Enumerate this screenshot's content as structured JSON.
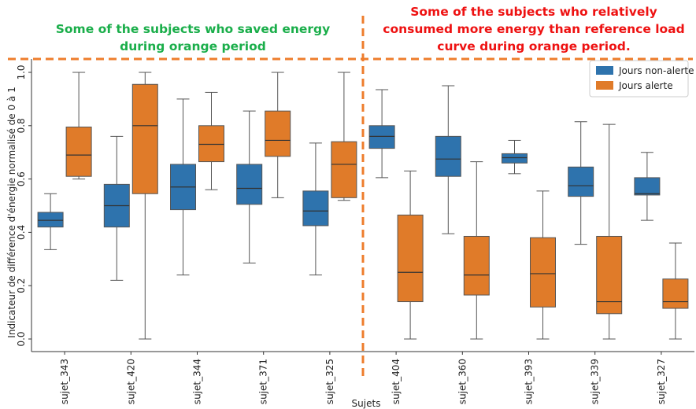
{
  "annotations": {
    "left": "Some of the subjects who saved energy during orange period",
    "right": "Some of the subjects who relatively consumed more energy than reference load curve during orange period."
  },
  "colors": {
    "non_alert": "#2e73ad",
    "alert": "#e07b29",
    "dashed_line": "#ee7d2c",
    "left_annotation": "#1aae4a",
    "right_annotation": "#ee1111"
  },
  "chart_data": {
    "type": "boxplot",
    "xlabel": "Sujets",
    "ylabel": "Indicateur de différence d'énergie normalisé de 0 à 1",
    "ylim": [
      -0.03,
      1.07
    ],
    "yticks": [
      "0.0",
      "0.2",
      "0.4",
      "0.6",
      "0.8",
      "1.0"
    ],
    "grid": false,
    "legend_position": "top-right",
    "categories": [
      "sujet_343",
      "sujet_420",
      "sujet_344",
      "sujet_371",
      "sujet_325",
      "sujet_404",
      "sujet_360",
      "sujet_393",
      "sujet_339",
      "sujet_327"
    ],
    "series": [
      {
        "name": "Jours non-alerte",
        "color": "#2e73ad",
        "boxes": [
          {
            "whislo": 0.335,
            "q1": 0.42,
            "med": 0.445,
            "q3": 0.475,
            "whishi": 0.545
          },
          {
            "whislo": 0.22,
            "q1": 0.42,
            "med": 0.5,
            "q3": 0.58,
            "whishi": 0.76
          },
          {
            "whislo": 0.24,
            "q1": 0.485,
            "med": 0.57,
            "q3": 0.655,
            "whishi": 0.9
          },
          {
            "whislo": 0.285,
            "q1": 0.505,
            "med": 0.565,
            "q3": 0.655,
            "whishi": 0.855
          },
          {
            "whislo": 0.24,
            "q1": 0.425,
            "med": 0.48,
            "q3": 0.555,
            "whishi": 0.735
          },
          {
            "whislo": 0.605,
            "q1": 0.715,
            "med": 0.76,
            "q3": 0.8,
            "whishi": 0.935
          },
          {
            "whislo": 0.395,
            "q1": 0.61,
            "med": 0.675,
            "q3": 0.76,
            "whishi": 0.95
          },
          {
            "whislo": 0.62,
            "q1": 0.66,
            "med": 0.68,
            "q3": 0.695,
            "whishi": 0.745
          },
          {
            "whislo": 0.355,
            "q1": 0.535,
            "med": 0.575,
            "q3": 0.645,
            "whishi": 0.815
          },
          {
            "whislo": 0.445,
            "q1": 0.54,
            "med": 0.545,
            "q3": 0.605,
            "whishi": 0.7
          }
        ]
      },
      {
        "name": "Jours alerte",
        "color": "#e07b29",
        "boxes": [
          {
            "whislo": 0.6,
            "q1": 0.61,
            "med": 0.69,
            "q3": 0.795,
            "whishi": 1.0
          },
          {
            "whislo": 0.0,
            "q1": 0.545,
            "med": 0.8,
            "q3": 0.955,
            "whishi": 1.0
          },
          {
            "whislo": 0.56,
            "q1": 0.665,
            "med": 0.73,
            "q3": 0.8,
            "whishi": 0.925
          },
          {
            "whislo": 0.53,
            "q1": 0.685,
            "med": 0.745,
            "q3": 0.855,
            "whishi": 1.0
          },
          {
            "whislo": 0.52,
            "q1": 0.53,
            "med": 0.655,
            "q3": 0.74,
            "whishi": 1.0
          },
          {
            "whislo": 0.0,
            "q1": 0.14,
            "med": 0.25,
            "q3": 0.465,
            "whishi": 0.63
          },
          {
            "whislo": 0.0,
            "q1": 0.165,
            "med": 0.24,
            "q3": 0.385,
            "whishi": 0.665
          },
          {
            "whislo": 0.0,
            "q1": 0.12,
            "med": 0.245,
            "q3": 0.38,
            "whishi": 0.555
          },
          {
            "whislo": 0.0,
            "q1": 0.095,
            "med": 0.14,
            "q3": 0.385,
            "whishi": 0.805
          },
          {
            "whislo": 0.0,
            "q1": 0.115,
            "med": 0.14,
            "q3": 0.225,
            "whishi": 0.36
          }
        ]
      }
    ],
    "reference_line_y": 1.06,
    "separator_after_category": "sujet_325"
  }
}
